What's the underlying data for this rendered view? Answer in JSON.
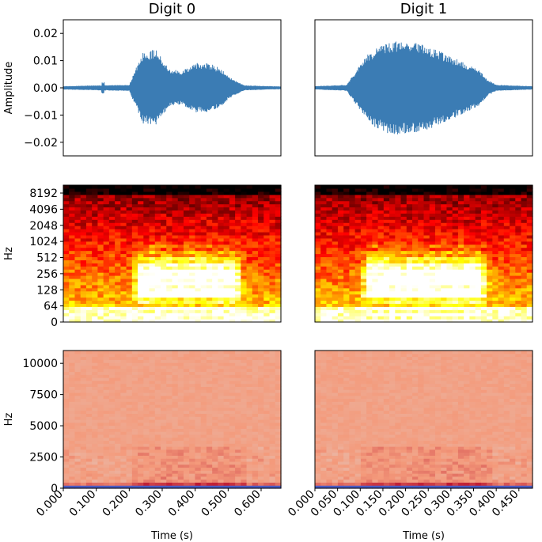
{
  "chart_data": [
    {
      "type": "line",
      "title": "Digit 0",
      "ylabel": "Amplitude",
      "ylim": [
        -0.025,
        0.025
      ],
      "y_ticks": [
        0.02,
        0.01,
        0.0,
        -0.01,
        -0.02
      ],
      "y_tick_labels": [
        "0.02",
        "0.01",
        "0.00",
        "−0.01",
        "−0.02"
      ],
      "xlim": [
        0.0,
        0.66
      ],
      "series": [
        {
          "color": "#3b7cb4",
          "envelope_t": [
            0.0,
            0.1,
            0.2,
            0.21,
            0.24,
            0.28,
            0.32,
            0.36,
            0.4,
            0.44,
            0.48,
            0.5,
            0.55,
            0.66
          ],
          "envelope_amp": [
            0.0005,
            0.0008,
            0.001,
            0.004,
            0.013,
            0.014,
            0.007,
            0.006,
            0.009,
            0.009,
            0.007,
            0.004,
            0.0008,
            0.0004
          ],
          "glitch_t": 0.12,
          "glitch_amp": 0.002
        }
      ]
    },
    {
      "type": "line",
      "title": "Digit 1",
      "ylim": [
        -0.025,
        0.025
      ],
      "xlim": [
        0.0,
        0.48
      ],
      "series": [
        {
          "color": "#3b7cb4",
          "envelope_t": [
            0.0,
            0.07,
            0.09,
            0.12,
            0.16,
            0.2,
            0.24,
            0.28,
            0.32,
            0.36,
            0.38,
            0.4,
            0.48
          ],
          "envelope_amp": [
            0.0005,
            0.001,
            0.006,
            0.013,
            0.017,
            0.017,
            0.016,
            0.013,
            0.01,
            0.007,
            0.003,
            0.001,
            0.0005
          ]
        }
      ]
    },
    {
      "type": "heatmap",
      "ylabel": "Hz",
      "y_scale": "log-like",
      "y_tick_labels": [
        "8192",
        "4096",
        "2048",
        "1024",
        "512",
        "256",
        "128",
        "64",
        "0"
      ],
      "xlim": [
        0.0,
        0.66
      ],
      "colormap": "hot",
      "voiced_start": 0.21,
      "voiced_end": 0.55
    },
    {
      "type": "heatmap",
      "y_scale": "log-like",
      "xlim": [
        0.0,
        0.48
      ],
      "colormap": "hot",
      "voiced_start": 0.1,
      "voiced_end": 0.39
    },
    {
      "type": "heatmap",
      "ylabel": "Hz",
      "xlabel": "Time (s)",
      "y_scale": "linear",
      "ylim": [
        0,
        11025
      ],
      "y_ticks": [
        0,
        2500,
        5000,
        7500,
        10000
      ],
      "y_tick_labels": [
        "0",
        "2500",
        "5000",
        "7500",
        "10000"
      ],
      "x_ticks": [
        0.0,
        0.1,
        0.2,
        0.3,
        0.4,
        0.5,
        0.6
      ],
      "x_tick_labels": [
        "0.000",
        "0.100",
        "0.200",
        "0.300",
        "0.400",
        "0.500",
        "0.600"
      ],
      "xlim": [
        0.0,
        0.66
      ],
      "colormap": "coolwarm",
      "voiced_start": 0.21,
      "voiced_end": 0.55
    },
    {
      "type": "heatmap",
      "xlabel": "Time (s)",
      "y_scale": "linear",
      "ylim": [
        0,
        11025
      ],
      "x_ticks": [
        0.0,
        0.05,
        0.1,
        0.15,
        0.2,
        0.25,
        0.3,
        0.35,
        0.4,
        0.45
      ],
      "x_tick_labels": [
        "0.000",
        "0.050",
        "0.100",
        "0.150",
        "0.200",
        "0.250",
        "0.300",
        "0.350",
        "0.400",
        "0.450"
      ],
      "xlim": [
        0.0,
        0.48
      ],
      "colormap": "coolwarm",
      "voiced_start": 0.1,
      "voiced_end": 0.39
    }
  ]
}
